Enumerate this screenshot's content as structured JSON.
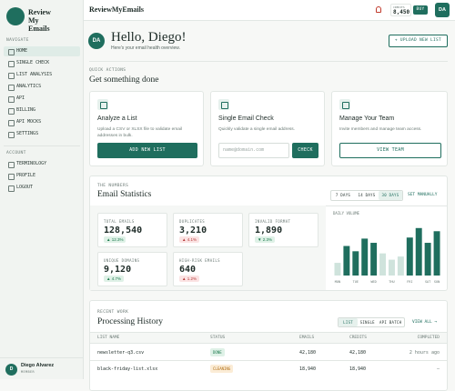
{
  "sidebar": {
    "brand": "Review My Emails",
    "nav_heading": "NAVIGATE",
    "nav": [
      "HOME",
      "SINGLE CHECK",
      "LIST ANALYSIS",
      "ANALYTICS",
      "API",
      "BILLING",
      "API MOCKS",
      "SETTINGS"
    ],
    "account_heading": "ACCOUNT",
    "account": [
      "TERMINOLOGY",
      "PROFILE",
      "LOGOUT"
    ],
    "user": {
      "initials": "D",
      "name": "Diego Alvarez",
      "role": "MEMBER"
    }
  },
  "topbar": {
    "brand": "ReviewMyEmails",
    "credits_label": "CREDITS",
    "credits": "8,450",
    "buy": "BUY",
    "avatar": "DA"
  },
  "hero": {
    "avatar": "DA",
    "title": "Hello, Diego!",
    "subtitle": "Here's your email health overview.",
    "button": "+ UPLOAD NEW LIST"
  },
  "quick_actions": {
    "eyebrow": "QUICK ACTIONS",
    "title": "Get something done",
    "cards": [
      {
        "title": "Analyze a List",
        "text": "Upload a CSV or XLSX file to validate email addresses in bulk.",
        "button": "ADD NEW LIST"
      },
      {
        "title": "Single Email Check",
        "text": "Quickly validate a single email address.",
        "placeholder": "name@domain.com",
        "button": "CHECK"
      },
      {
        "title": "Manage Your Team",
        "text": "Invite members and manage team access.",
        "button": "VIEW TEAM"
      }
    ]
  },
  "stats": {
    "eyebrow": "THE NUMBERS",
    "title": "Email Statistics",
    "ranges": [
      "7 DAYS",
      "14 DAYS",
      "30 DAYS"
    ],
    "manual": "SET MANUALLY",
    "tiles": [
      {
        "label": "TOTAL EMAILS",
        "value": "128,540",
        "delta": "▲ 12.3%"
      },
      {
        "label": "DUPLICATES",
        "value": "3,210",
        "delta": "▲ 4.1%"
      },
      {
        "label": "INVALID FORMAT",
        "value": "1,890",
        "delta": "▼ 2.3%"
      },
      {
        "label": "UNIQUE DOMAINS",
        "value": "9,120",
        "delta": "▲ 4.7%"
      },
      {
        "label": "HIGH-RISK EMAILS",
        "value": "640",
        "delta": "▲ 1.2%"
      }
    ],
    "chart_data": {
      "type": "bar",
      "title": "DAILY VOLUME",
      "categories": [
        "MON",
        null,
        "TUE",
        null,
        "WED",
        null,
        "THU",
        null,
        "FRI",
        null,
        "SAT",
        "SUN"
      ],
      "values": [
        24,
        56,
        46,
        70,
        62,
        42,
        30,
        36,
        72,
        90,
        62,
        84
      ],
      "colors": [
        "#cfe3dc",
        "#1f6e5e",
        "#1f6e5e",
        "#1f6e5e",
        "#1f6e5e",
        "#cfe3dc",
        "#cfe3dc",
        "#cfe3dc",
        "#1f6e5e",
        "#1f6e5e",
        "#1f6e5e",
        "#1f6e5e"
      ],
      "ylim": [
        0,
        100
      ]
    }
  },
  "history": {
    "eyebrow": "RECENT WORK",
    "title": "Processing History",
    "tabs": [
      "LIST",
      "SINGLE",
      "API BATCH"
    ],
    "view_all": "VIEW ALL →",
    "columns": [
      "LIST NAME",
      "STATUS",
      "EMAILS",
      "CREDITS",
      "COMPLETED"
    ],
    "rows": [
      [
        "newsletter-q3.csv",
        "DONE",
        "42,180",
        "42,180",
        "2 hours ago"
      ],
      [
        "black-friday-list.xlsx",
        "CLEANING",
        "18,940",
        "18,940",
        "–"
      ]
    ]
  }
}
